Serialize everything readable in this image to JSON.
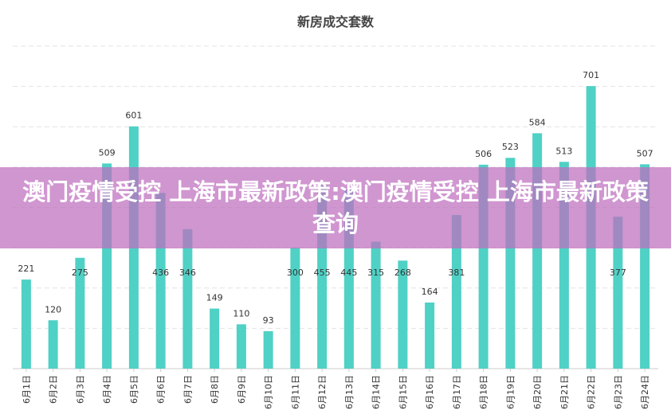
{
  "chart_data": {
    "type": "bar",
    "title": "新房成交套数",
    "categories": [
      "6月1日",
      "6月2日",
      "6月3日",
      "6月4日",
      "6月5日",
      "6月6日",
      "6月7日",
      "6月8日",
      "6月9日",
      "6月10日",
      "6月11日",
      "6月12日",
      "6月13日",
      "6月14日",
      "6月15日",
      "6月16日",
      "6月17日",
      "6月18日",
      "6月19日",
      "6月20日",
      "6月21日",
      "6月22日",
      "6月23日",
      "6月24日"
    ],
    "values": [
      221,
      120,
      275,
      509,
      601,
      436,
      346,
      149,
      110,
      93,
      300,
      455,
      445,
      315,
      268,
      164,
      381,
      506,
      523,
      584,
      513,
      701,
      377,
      507
    ],
    "ylim": [
      0,
      800
    ],
    "grid": true,
    "color": "#4fd1c5"
  },
  "banner": {
    "text": "澳门疫情受控 上海市最新政策:澳门疫情受控 上海市最新政策查询"
  }
}
